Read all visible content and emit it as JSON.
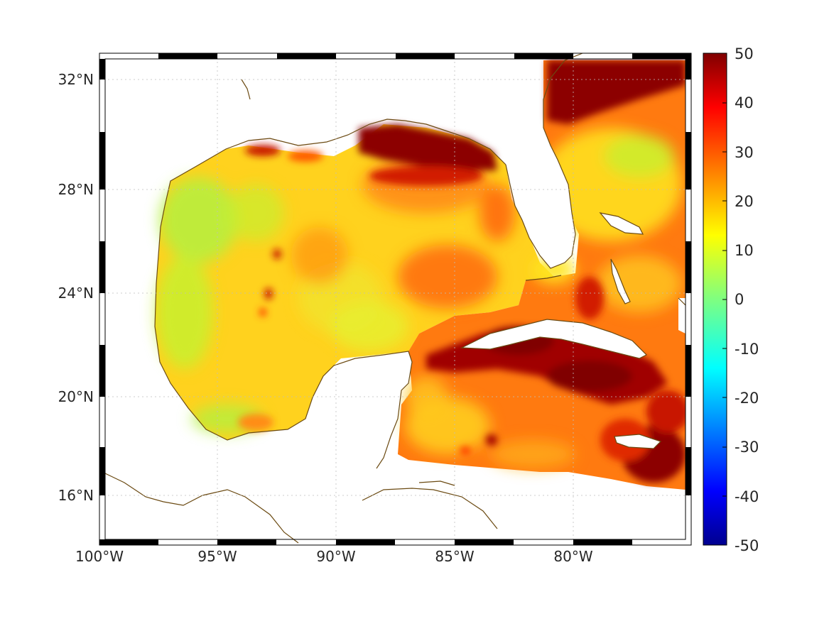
{
  "map": {
    "lat_ticks": [
      "32°N",
      "28°N",
      "24°N",
      "20°N",
      "16°N"
    ],
    "lon_ticks": [
      "100°W",
      "95°W",
      "90°W",
      "85°W",
      "80°W"
    ],
    "coast_color": "#6b4a12",
    "grid": "dotted"
  },
  "colorbar": {
    "ticks": [
      "50",
      "40",
      "30",
      "20",
      "10",
      "0",
      "-10",
      "-20",
      "-30",
      "-40",
      "-50"
    ],
    "min": -50,
    "max": 50,
    "colormap": "jet"
  }
}
